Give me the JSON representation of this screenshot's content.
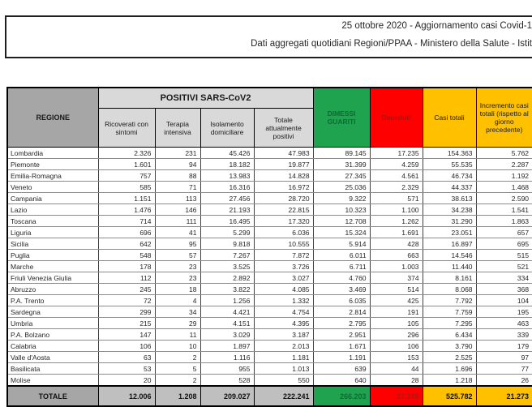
{
  "header_box": {
    "line1": "25 ottobre 2020 - Aggiornamento casi Covid-1",
    "line2": "Dati aggregati quotidiani Regioni/PPAA - Ministero della Salute - Istit"
  },
  "chart_data": {
    "type": "table",
    "title": "25 ottobre 2020 - Aggiornamento casi Covid-1",
    "region_header": "REGIONE",
    "group_header": "POSITIVI SARS-CoV2",
    "sub_headers": [
      "Ricoverati con sintomi",
      "Terapia intensiva",
      "Isolamento domiciliare",
      "Totale attualmente positivi"
    ],
    "stat_headers": [
      "DIMESSI GUARITI",
      "Deceduti",
      "Casi totali",
      "Incremento casi totali (rispetto al giorno precedente)"
    ],
    "columns": [
      "REGIONE",
      "Ricoverati con sintomi",
      "Terapia intensiva",
      "Isolamento domiciliare",
      "Totale attualmente positivi",
      "DIMESSI GUARITI",
      "Deceduti",
      "Casi totali",
      "Incremento casi totali (rispetto al giorno precedente)"
    ],
    "rows": [
      [
        "Lombardia",
        "2.326",
        "231",
        "45.426",
        "47.983",
        "89.145",
        "17.235",
        "154.363",
        "5.762"
      ],
      [
        "Piemonte",
        "1.601",
        "94",
        "18.182",
        "19.877",
        "31.399",
        "4.259",
        "55.535",
        "2.287"
      ],
      [
        "Emilia-Romagna",
        "757",
        "88",
        "13.983",
        "14.828",
        "27.345",
        "4.561",
        "46.734",
        "1.192"
      ],
      [
        "Veneto",
        "585",
        "71",
        "16.316",
        "16.972",
        "25.036",
        "2.329",
        "44.337",
        "1.468"
      ],
      [
        "Campania",
        "1.151",
        "113",
        "27.456",
        "28.720",
        "9.322",
        "571",
        "38.613",
        "2.590"
      ],
      [
        "Lazio",
        "1.476",
        "146",
        "21.193",
        "22.815",
        "10.323",
        "1.100",
        "34.238",
        "1.541"
      ],
      [
        "Toscana",
        "714",
        "111",
        "16.495",
        "17.320",
        "12.708",
        "1.262",
        "31.290",
        "1.863"
      ],
      [
        "Liguria",
        "696",
        "41",
        "5.299",
        "6.036",
        "15.324",
        "1.691",
        "23.051",
        "657"
      ],
      [
        "Sicilia",
        "642",
        "95",
        "9.818",
        "10.555",
        "5.914",
        "428",
        "16.897",
        "695"
      ],
      [
        "Puglia",
        "548",
        "57",
        "7.267",
        "7.872",
        "6.011",
        "663",
        "14.546",
        "515"
      ],
      [
        "Marche",
        "178",
        "23",
        "3.525",
        "3.726",
        "6.711",
        "1.003",
        "11.440",
        "521"
      ],
      [
        "Friuli Venezia Giulia",
        "112",
        "23",
        "2.892",
        "3.027",
        "4.760",
        "374",
        "8.161",
        "334"
      ],
      [
        "Abruzzo",
        "245",
        "18",
        "3.822",
        "4.085",
        "3.469",
        "514",
        "8.068",
        "368"
      ],
      [
        "P.A. Trento",
        "72",
        "4",
        "1.256",
        "1.332",
        "6.035",
        "425",
        "7.792",
        "104"
      ],
      [
        "Sardegna",
        "299",
        "34",
        "4.421",
        "4.754",
        "2.814",
        "191",
        "7.759",
        "195"
      ],
      [
        "Umbria",
        "215",
        "29",
        "4.151",
        "4.395",
        "2.795",
        "105",
        "7.295",
        "463"
      ],
      [
        "P.A. Bolzano",
        "147",
        "11",
        "3.029",
        "3.187",
        "2.951",
        "296",
        "6.434",
        "339"
      ],
      [
        "Calabria",
        "106",
        "10",
        "1.897",
        "2.013",
        "1.671",
        "106",
        "3.790",
        "179"
      ],
      [
        "Valle d'Aosta",
        "63",
        "2",
        "1.116",
        "1.181",
        "1.191",
        "153",
        "2.525",
        "97"
      ],
      [
        "Basilicata",
        "53",
        "5",
        "955",
        "1.013",
        "639",
        "44",
        "1.696",
        "77"
      ],
      [
        "Molise",
        "20",
        "2",
        "528",
        "550",
        "640",
        "28",
        "1.218",
        "26"
      ]
    ],
    "totale": [
      "TOTALE",
      "12.006",
      "1.208",
      "209.027",
      "222.241",
      "266.203",
      "37.338",
      "525.782",
      "21.273"
    ]
  },
  "colors": {
    "green": "#1FA34F",
    "green_text": "#0E6B33",
    "red": "#FE0000",
    "red_text": "#A31515",
    "gold": "#FFC000",
    "header_gray": "#A6A6A6",
    "subheader_gray": "#D9D9D9",
    "total_gray": "#BFBFBF"
  }
}
